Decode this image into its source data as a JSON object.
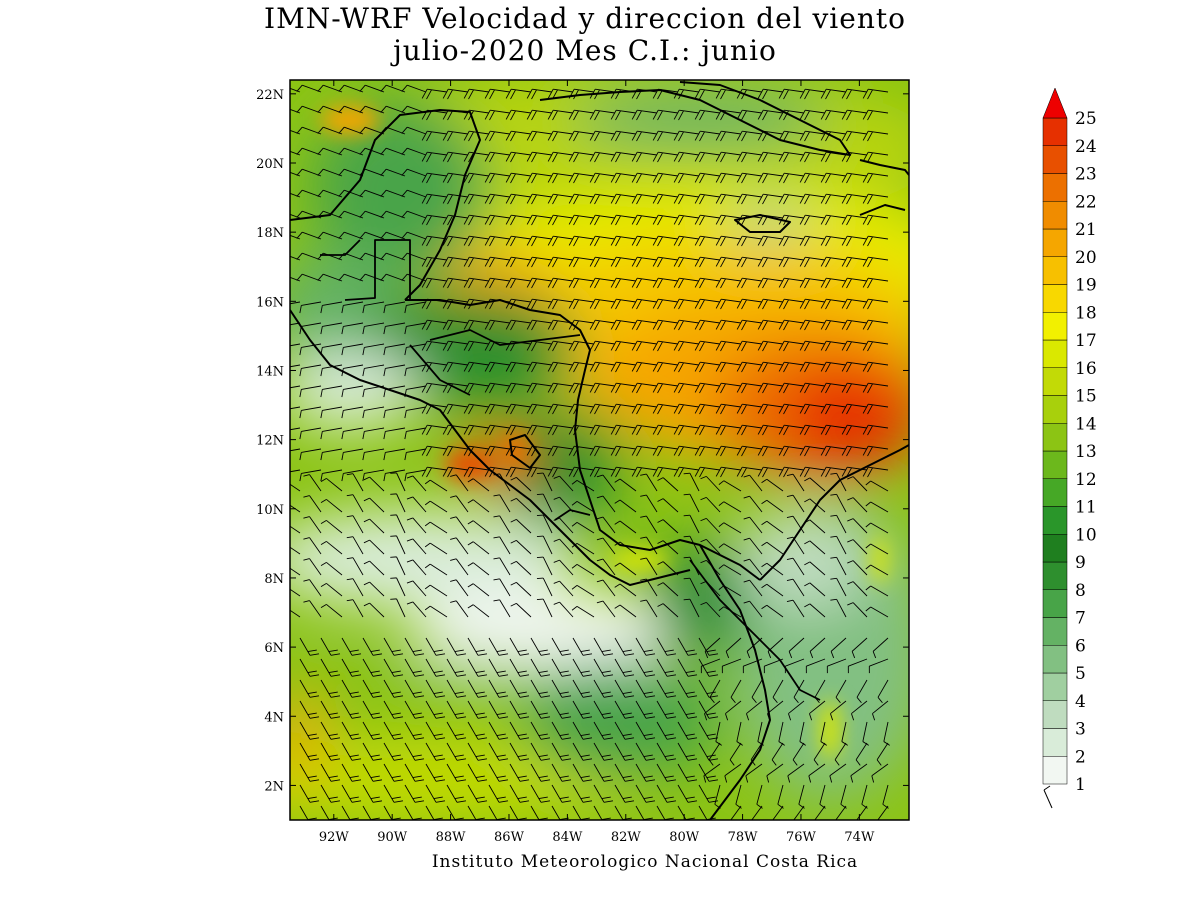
{
  "title": {
    "line1": "IMN-WRF Velocidad y direccion del viento",
    "line2": "julio-2020 Mes C.I.: junio"
  },
  "footer": "Instituto Meteorologico Nacional Costa Rica",
  "map": {
    "lon_range": [
      -93.5,
      -72.3
    ],
    "lat_range": [
      1,
      22.4
    ],
    "lat_ticks": [
      {
        "value": 2,
        "label": "2N"
      },
      {
        "value": 4,
        "label": "4N"
      },
      {
        "value": 6,
        "label": "6N"
      },
      {
        "value": 8,
        "label": "8N"
      },
      {
        "value": 10,
        "label": "10N"
      },
      {
        "value": 12,
        "label": "12N"
      },
      {
        "value": 14,
        "label": "14N"
      },
      {
        "value": 16,
        "label": "16N"
      },
      {
        "value": 18,
        "label": "18N"
      },
      {
        "value": 20,
        "label": "20N"
      },
      {
        "value": 22,
        "label": "22N"
      }
    ],
    "lon_ticks": [
      {
        "value": -92,
        "label": "92W"
      },
      {
        "value": -90,
        "label": "90W"
      },
      {
        "value": -88,
        "label": "88W"
      },
      {
        "value": -86,
        "label": "86W"
      },
      {
        "value": -84,
        "label": "84W"
      },
      {
        "value": -82,
        "label": "82W"
      },
      {
        "value": -80,
        "label": "80W"
      },
      {
        "value": -78,
        "label": "78W"
      },
      {
        "value": -76,
        "label": "76W"
      },
      {
        "value": -74,
        "label": "74W"
      }
    ],
    "colorbar": {
      "labels": [
        "1",
        "2",
        "3",
        "4",
        "5",
        "6",
        "7",
        "8",
        "9",
        "10",
        "11",
        "12",
        "13",
        "14",
        "15",
        "16",
        "17",
        "18",
        "19",
        "20",
        "21",
        "22",
        "23",
        "24",
        "25"
      ],
      "colors": [
        "#f2f7f2",
        "#d9ecd9",
        "#bfdcbf",
        "#a0cfa0",
        "#82c082",
        "#64b264",
        "#48a448",
        "#2e8f2e",
        "#1f7f1f",
        "#2a962a",
        "#46a826",
        "#6cb81c",
        "#8cc414",
        "#a8d00c",
        "#c2da06",
        "#dae800",
        "#f2f000",
        "#f8d800",
        "#f7c000",
        "#f5a600",
        "#f08c00",
        "#ec7000",
        "#e85000",
        "#e63000",
        "#ff1a00"
      ],
      "arrow_color": "#ee0000"
    },
    "legend_barb": "wind-barb-reference"
  }
}
